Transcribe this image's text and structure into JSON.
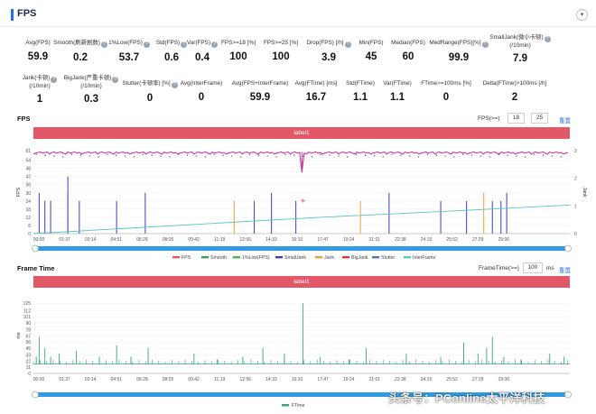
{
  "header": {
    "title": "FPS",
    "collapse_icon": "chevron-down-icon"
  },
  "stats_row1": [
    {
      "label": "Avg(FPS)",
      "value": "59.9",
      "help": false
    },
    {
      "label": "Smooth(刷新剧数)",
      "value": "0.2",
      "help": true
    },
    {
      "label": "1%Low(FPS)",
      "value": "53.7",
      "help": true
    },
    {
      "label": "Std(FPS)",
      "value": "0.6",
      "help": true
    },
    {
      "label": "Var(FPS)",
      "value": "0.4",
      "help": true
    },
    {
      "label": "FPS>=18 [%]",
      "value": "100",
      "help": false
    },
    {
      "label": "FPS>=25 [%]",
      "value": "100",
      "help": false
    },
    {
      "label": "Drop(FPS) [/h]",
      "value": "3.9",
      "help": true
    },
    {
      "label": "Min(FPS)",
      "value": "45",
      "help": false
    },
    {
      "label": "Median(FPS)",
      "value": "60",
      "help": false
    },
    {
      "label": "MedRange(FPS)[%]",
      "value": "99.9",
      "help": true
    },
    {
      "label": "SmallJank(微小卡顿)",
      "label2": "(/10min)",
      "value": "7.9",
      "help": true
    }
  ],
  "stats_row2": [
    {
      "label": "Jank(卡顿)",
      "label2": "(/10min)",
      "value": "1",
      "help": true
    },
    {
      "label": "BigJank(严重卡顿)",
      "label2": "(/10min)",
      "value": "0.3",
      "help": true
    },
    {
      "label": "Stutter(卡顿率) [%]",
      "value": "0",
      "help": true
    },
    {
      "label": "Avg(InterFrame)",
      "value": "0",
      "help": false
    },
    {
      "label": "Avg(FPS+InterFrame)",
      "value": "59.9",
      "help": false
    },
    {
      "label": "Avg(FTime) [ms]",
      "value": "16.7",
      "help": false
    },
    {
      "label": "Std(FTime)",
      "value": "1.1",
      "help": false
    },
    {
      "label": "Var(FTime)",
      "value": "1.1",
      "help": false
    },
    {
      "label": "FTime>=100ms [%]",
      "value": "0",
      "help": false
    },
    {
      "label": "Delta(FTime)>100ms [/h]",
      "value": "2",
      "help": false
    }
  ],
  "fps_panel": {
    "title": "FPS",
    "control_label": "FPS(>=)",
    "threshold1": "18",
    "threshold2": "25",
    "reset_label": "重置",
    "band_label": "label1",
    "y_axis_label": "FPS",
    "y2_axis_label": "Jank",
    "legend": [
      {
        "name": "FPS",
        "color": "#e8566b"
      },
      {
        "name": "Smooth",
        "color": "#3d9e5f"
      },
      {
        "name": "1%Low(FPS)",
        "color": "#4caf50"
      },
      {
        "name": "SmallJank",
        "color": "#3f3fb5"
      },
      {
        "name": "Jank",
        "color": "#e8a040"
      },
      {
        "name": "BigJank",
        "color": "#d93a3a"
      },
      {
        "name": "Stutter",
        "color": "#5a6cc8"
      },
      {
        "name": "InterFrame",
        "color": "#59c4c0"
      }
    ]
  },
  "ftime_panel": {
    "title": "Frame Time",
    "control_label": "FrameTime(>=)",
    "threshold": "100",
    "unit": "ms",
    "reset_label": "重置",
    "band_label": "label1",
    "y_axis_label": "ms",
    "legend": [
      {
        "name": "FTime",
        "color": "#3aa37a"
      }
    ]
  },
  "watermark": "头条号：PConline太平洋科技",
  "chart_data": [
    {
      "type": "line",
      "title": "FPS",
      "ylabel": "FPS",
      "ylim": [
        0,
        61
      ],
      "y_ticks": [
        0,
        6,
        12,
        18,
        24,
        30,
        36,
        42,
        48,
        54,
        61
      ],
      "y2label": "Jank",
      "y2_ticks": [
        0,
        1,
        2,
        3
      ],
      "x_ticks": [
        "00:00",
        "01:37",
        "03:14",
        "04:51",
        "06:28",
        "08:05",
        "09:42",
        "11:19",
        "12:56",
        "14:33",
        "16:10",
        "17:47",
        "19:24",
        "21:01",
        "22:38",
        "24:15",
        "25:52",
        "27:29",
        "29:06"
      ],
      "x_range_seconds": [
        0,
        1870
      ],
      "series": [
        {
          "name": "FPS",
          "values": "near 60 throughout with occasional dips (min 45)"
        },
        {
          "name": "InterFrame",
          "values": [
            [
              0,
              0
            ],
            [
              500,
              6
            ],
            [
              1000,
              12
            ],
            [
              1500,
              17
            ],
            [
              1870,
              21
            ]
          ]
        }
      ],
      "jank_spike_times_seconds": [
        20,
        40,
        60,
        120,
        160,
        290,
        390,
        700,
        770,
        830,
        915,
        1140,
        1240,
        1420,
        1510,
        1570,
        1600,
        1630,
        1650
      ],
      "bigjank_marker_time_seconds": 940,
      "grid": true
    },
    {
      "type": "line",
      "title": "Frame Time",
      "ylabel": "ms",
      "ylim": [
        0,
        135
      ],
      "y_ticks": [
        0,
        11,
        22,
        33,
        45,
        56,
        67,
        78,
        90,
        101,
        112,
        125
      ],
      "x_ticks": [
        "00:00",
        "01:37",
        "03:14",
        "04:51",
        "06:28",
        "08:05",
        "09:42",
        "11:19",
        "12:56",
        "14:33",
        "16:10",
        "17:47",
        "19:24",
        "21:01",
        "22:38",
        "24:15",
        "25:52",
        "27:29",
        "29:06"
      ],
      "x_range_seconds": [
        0,
        1870
      ],
      "series": [
        {
          "name": "FTime",
          "baseline": 16.7,
          "spikes": [
            [
              10,
              30
            ],
            [
              20,
              65
            ],
            [
              40,
              45
            ],
            [
              60,
              30
            ],
            [
              90,
              35
            ],
            [
              150,
              40
            ],
            [
              230,
              30
            ],
            [
              290,
              50
            ],
            [
              340,
              30
            ],
            [
              400,
              45
            ],
            [
              560,
              35
            ],
            [
              640,
              25
            ],
            [
              730,
              30
            ],
            [
              800,
              45
            ],
            [
              875,
              35
            ],
            [
              940,
              125
            ],
            [
              1000,
              30
            ],
            [
              1100,
              25
            ],
            [
              1160,
              45
            ],
            [
              1300,
              35
            ],
            [
              1420,
              30
            ],
            [
              1500,
              55
            ],
            [
              1550,
              35
            ],
            [
              1580,
              45
            ],
            [
              1600,
              65
            ],
            [
              1640,
              30
            ],
            [
              1700,
              25
            ],
            [
              1800,
              35
            ],
            [
              1850,
              30
            ]
          ]
        }
      ],
      "grid": true
    }
  ]
}
